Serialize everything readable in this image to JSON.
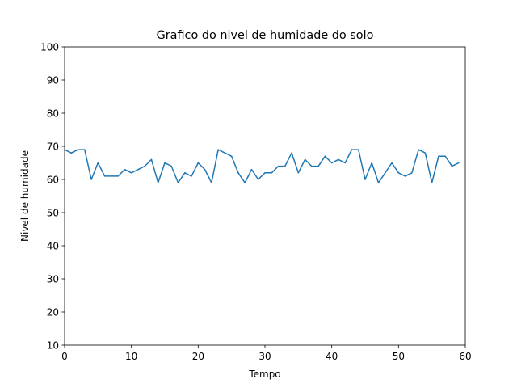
{
  "chart_data": {
    "type": "line",
    "title": "Grafico do nivel de humidade do solo",
    "xlabel": "Tempo",
    "ylabel": "Nivel de humidade",
    "xlim": [
      0,
      60
    ],
    "ylim": [
      10,
      100
    ],
    "xticks": [
      0,
      10,
      20,
      30,
      40,
      50,
      60
    ],
    "yticks": [
      10,
      20,
      30,
      40,
      50,
      60,
      70,
      80,
      90,
      100
    ],
    "grid": false,
    "line_color": "#1f77b4",
    "series": [
      {
        "x": [
          0,
          1,
          2,
          3,
          4,
          5,
          6,
          7,
          8,
          9,
          10,
          11,
          12,
          13,
          14,
          15,
          16,
          17,
          18,
          19,
          20,
          21,
          22,
          23,
          24,
          25,
          26,
          27,
          28,
          29,
          30,
          31,
          32,
          33,
          34,
          35,
          36,
          37,
          38,
          39,
          40,
          41,
          42,
          43,
          44,
          45,
          46,
          47,
          48,
          49,
          50,
          51,
          52,
          53,
          54,
          55,
          56,
          57,
          58,
          59
        ],
        "values": [
          69,
          68,
          69,
          69,
          60,
          65,
          61,
          61,
          61,
          63,
          62,
          63,
          64,
          66,
          59,
          65,
          64,
          59,
          62,
          61,
          65,
          63,
          59,
          69,
          68,
          67,
          62,
          59,
          63,
          60,
          62,
          62,
          64,
          64,
          68,
          62,
          66,
          64,
          64,
          67,
          65,
          66,
          65,
          69,
          69,
          60,
          65,
          59,
          62,
          65,
          62,
          61,
          62,
          69,
          68,
          59,
          67,
          67,
          64,
          65
        ]
      }
    ]
  }
}
